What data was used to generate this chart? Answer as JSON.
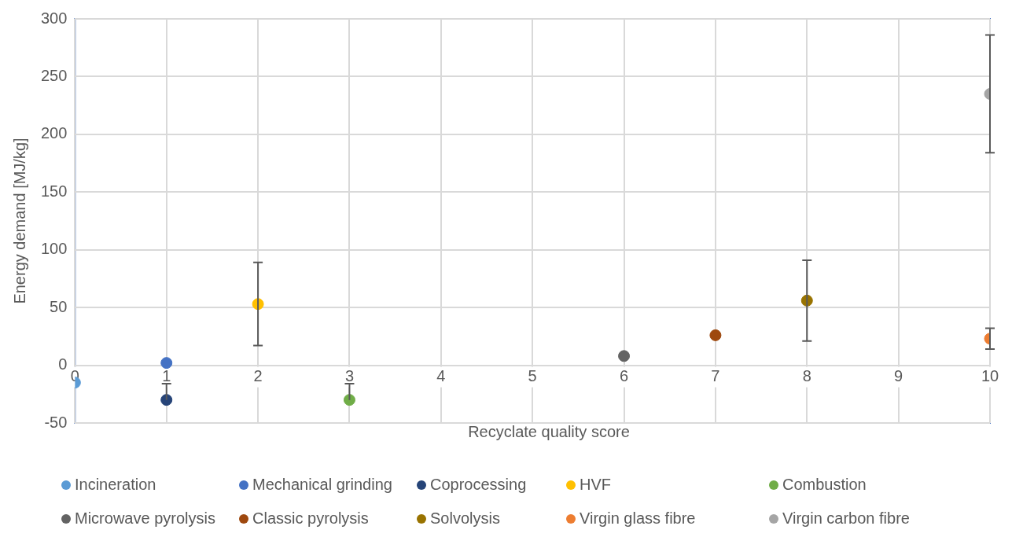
{
  "chart_data": {
    "type": "scatter",
    "xlabel": "Recyclate quality score",
    "ylabel": "Energy demand [MJ/kg]",
    "xlim": [
      0,
      10
    ],
    "xticks": [
      0,
      1,
      2,
      3,
      4,
      5,
      6,
      7,
      8,
      9,
      10
    ],
    "ylim": [
      -50,
      300
    ],
    "yticks": [
      -50,
      0,
      50,
      100,
      150,
      200,
      250,
      300
    ],
    "grid": true,
    "legend": "bottom",
    "marker": "circle",
    "series": [
      {
        "name": "Incineration",
        "color": "#5b9bd5",
        "x": [
          0
        ],
        "values": [
          -15
        ]
      },
      {
        "name": "Mechanical grinding",
        "color": "#4472c4",
        "x": [
          1
        ],
        "values": [
          2
        ]
      },
      {
        "name": "Coprocessing",
        "color": "#264478",
        "x": [
          1
        ],
        "values": [
          -30
        ],
        "errors": [
          [
            -30,
            -16
          ]
        ]
      },
      {
        "name": "HVF",
        "color": "#ffc000",
        "x": [
          2
        ],
        "values": [
          53
        ],
        "errors": [
          36
        ]
      },
      {
        "name": "Combustion",
        "color": "#70ad47",
        "x": [
          3
        ],
        "values": [
          -30
        ],
        "errors": [
          [
            -30,
            -16
          ]
        ]
      },
      {
        "name": "Microwave pyrolysis",
        "color": "#636363",
        "x": [
          6
        ],
        "values": [
          8
        ]
      },
      {
        "name": "Classic pyrolysis",
        "color": "#9e480e",
        "x": [
          7
        ],
        "values": [
          26
        ]
      },
      {
        "name": "Solvolysis",
        "color": "#997300",
        "x": [
          8
        ],
        "values": [
          56
        ],
        "errors": [
          35
        ]
      },
      {
        "name": "Virgin glass fibre",
        "color": "#ed7d31",
        "x": [
          10
        ],
        "values": [
          23
        ],
        "errors": [
          9
        ]
      },
      {
        "name": "Virgin carbon fibre",
        "color": "#a5a5a5",
        "x": [
          10
        ],
        "values": [
          235
        ],
        "errors": [
          51
        ]
      }
    ]
  }
}
